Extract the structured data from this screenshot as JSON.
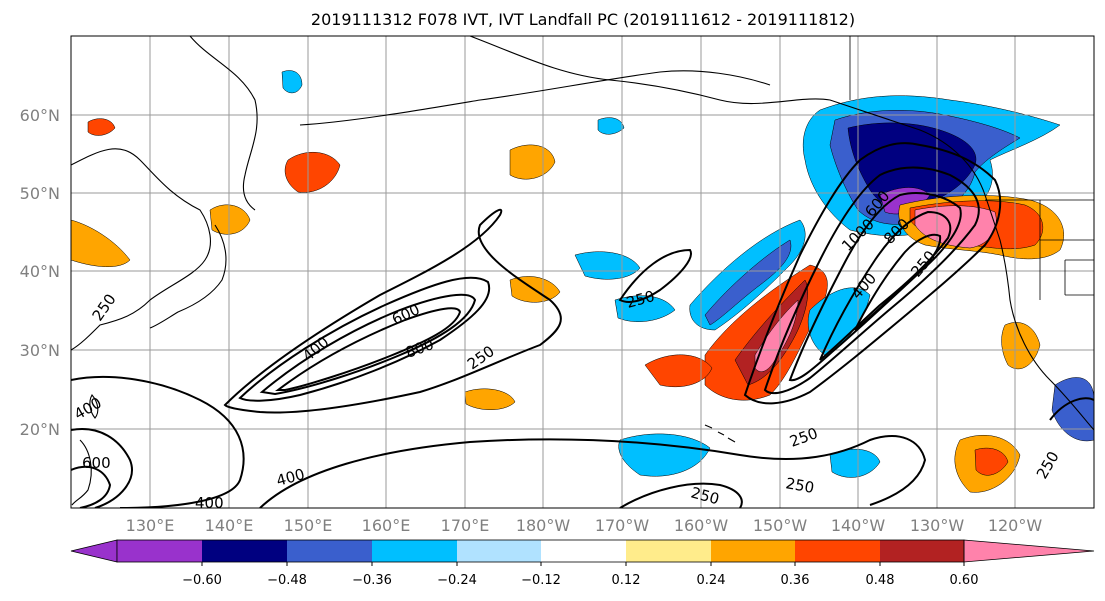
{
  "title": "2019111312 F078 IVT, IVT Landfall PC (2019111612 - 2019111812)",
  "lat_labels": [
    "60°N",
    "50°N",
    "40°N",
    "30°N",
    "20°N"
  ],
  "lon_labels": [
    "130°E",
    "140°E",
    "150°E",
    "160°E",
    "170°E",
    "180°W",
    "170°W",
    "160°W",
    "150°W",
    "140°W",
    "130°W",
    "120°W"
  ],
  "colorbar": {
    "colors": [
      "#9932CC",
      "#000080",
      "#3A5FCD",
      "#00BFFF",
      "#B0E2FF",
      "#FFFFFF",
      "#FFEC8B",
      "#FFA500",
      "#FF4500",
      "#B22222",
      "#FF82AB"
    ],
    "tick_labels": [
      "−0.60",
      "−0.48",
      "−0.36",
      "−0.24",
      "−0.12",
      "0.12",
      "0.24",
      "0.36",
      "0.48",
      "0.60"
    ]
  },
  "contour_labels": [
    "250",
    "400",
    "600",
    "800",
    "250",
    "250",
    "400",
    "600",
    "800",
    "1000",
    "250",
    "400",
    "250",
    "250",
    "250",
    "400",
    "600",
    "400",
    "250"
  ]
}
